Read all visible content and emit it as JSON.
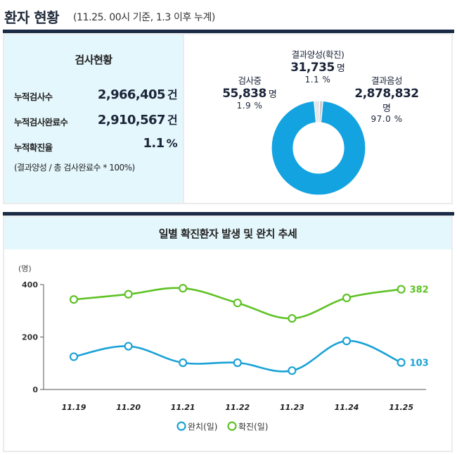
{
  "header": {
    "title": "환자 현황",
    "subtitle": "(11.25. 00시 기준, 1.3 이후 누계)"
  },
  "tests": {
    "title": "검사현황",
    "rows": [
      {
        "label": "누적검사수",
        "value": "2,966,405",
        "unit": "건"
      },
      {
        "label": "누적검사완료수",
        "value": "2,910,567",
        "unit": "건"
      },
      {
        "label": "누적확진율",
        "value": "1.1",
        "unit": "%"
      }
    ],
    "note": "(결과양성 / 총 검사완료수 * 100%)"
  },
  "donut": {
    "unit": "명",
    "segments": [
      {
        "name": "결과양성(확진)",
        "value": "31,735",
        "percent": "1.1 %",
        "share": 1.1,
        "color": "#c9cdd3"
      },
      {
        "name": "검사중",
        "value": "55,838",
        "percent": "1.9 %",
        "share": 1.9,
        "color": "#e3e6ea"
      },
      {
        "name": "결과음성",
        "value": "2,878,832",
        "percent": "97.0 %",
        "share": 97.0,
        "color": "#12a3e0"
      }
    ]
  },
  "chart_title": "일별 확진환자 발생 및 완치 추세",
  "chart_data": {
    "type": "line",
    "ylabel": "(명)",
    "ylim": [
      0,
      400
    ],
    "yticks": [
      0,
      200,
      400
    ],
    "categories": [
      "11.19",
      "11.20",
      "11.21",
      "11.22",
      "11.23",
      "11.24",
      "11.25"
    ],
    "series": [
      {
        "name": "완치(일)",
        "color": "#1aa2d6",
        "values": [
          125,
          165,
          102,
          102,
          72,
          185,
          103
        ],
        "end_label": "103"
      },
      {
        "name": "확진(일)",
        "color": "#5ec224",
        "values": [
          343,
          363,
          386,
          330,
          271,
          349,
          382
        ],
        "end_label": "382"
      }
    ],
    "legend": "bottom",
    "grid": false
  }
}
